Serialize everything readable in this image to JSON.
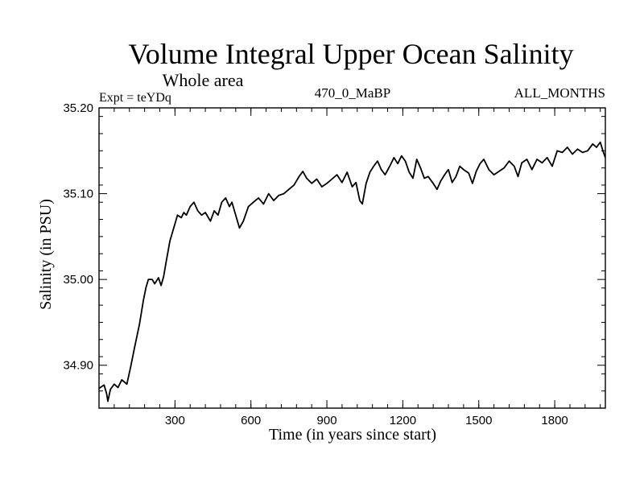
{
  "chart_data": {
    "type": "line",
    "title": "Volume Integral Upper Ocean Salinity",
    "subtitle": "Whole area",
    "left_label": "Expt = teYDq",
    "center_label": "470_0_MaBP",
    "right_label": "ALL_MONTHS",
    "xlabel": "Time (in years since start)",
    "ylabel": "Salinity (in PSU)",
    "xlim": [
      0,
      2000
    ],
    "ylim": [
      34.85,
      35.2
    ],
    "x_ticks": [
      300,
      600,
      900,
      1200,
      1500,
      1800
    ],
    "x_tick_labels": [
      "300",
      "600",
      "900",
      "1200",
      "1500",
      "1800"
    ],
    "y_ticks": [
      34.9,
      35.0,
      35.1,
      35.2
    ],
    "y_tick_labels": [
      "34.90",
      "35.00",
      "35.10",
      "35.20"
    ],
    "series": [
      {
        "name": "Salinity",
        "color": "#000000",
        "x": [
          0,
          20,
          30,
          35,
          45,
          60,
          75,
          90,
          110,
          125,
          140,
          160,
          175,
          185,
          195,
          210,
          220,
          235,
          245,
          255,
          265,
          280,
          295,
          310,
          325,
          335,
          345,
          360,
          375,
          390,
          405,
          420,
          440,
          455,
          470,
          485,
          500,
          515,
          525,
          540,
          555,
          570,
          590,
          610,
          630,
          650,
          670,
          690,
          710,
          730,
          750,
          770,
          790,
          805,
          820,
          840,
          860,
          880,
          900,
          920,
          940,
          960,
          980,
          1000,
          1015,
          1030,
          1040,
          1055,
          1070,
          1085,
          1100,
          1115,
          1130,
          1150,
          1165,
          1180,
          1195,
          1210,
          1225,
          1240,
          1255,
          1270,
          1285,
          1300,
          1320,
          1335,
          1350,
          1365,
          1380,
          1395,
          1410,
          1425,
          1440,
          1460,
          1475,
          1490,
          1505,
          1520,
          1540,
          1560,
          1580,
          1600,
          1620,
          1640,
          1655,
          1670,
          1690,
          1710,
          1730,
          1750,
          1770,
          1790,
          1810,
          1830,
          1850,
          1870,
          1890,
          1910,
          1930,
          1950,
          1965,
          1980,
          1990,
          2000
        ],
        "values": [
          34.873,
          34.877,
          34.867,
          34.858,
          34.872,
          34.878,
          34.874,
          34.883,
          34.878,
          34.898,
          34.92,
          34.948,
          34.975,
          34.99,
          35.0,
          35.0,
          34.995,
          35.002,
          34.993,
          35.003,
          35.02,
          35.045,
          35.06,
          35.075,
          35.072,
          35.078,
          35.075,
          35.085,
          35.09,
          35.08,
          35.075,
          35.078,
          35.068,
          35.08,
          35.075,
          35.09,
          35.095,
          35.085,
          35.09,
          35.075,
          35.06,
          35.068,
          35.085,
          35.09,
          35.095,
          35.088,
          35.1,
          35.092,
          35.098,
          35.1,
          35.105,
          35.11,
          35.12,
          35.126,
          35.118,
          35.112,
          35.117,
          35.108,
          35.112,
          35.117,
          35.122,
          35.113,
          35.125,
          35.108,
          35.113,
          35.092,
          35.088,
          35.112,
          35.125,
          35.132,
          35.138,
          35.128,
          35.122,
          35.133,
          35.142,
          35.135,
          35.144,
          35.138,
          35.125,
          35.118,
          35.14,
          35.13,
          35.118,
          35.12,
          35.112,
          35.105,
          35.115,
          35.122,
          35.128,
          35.113,
          35.12,
          35.132,
          35.128,
          35.124,
          35.112,
          35.126,
          35.135,
          35.14,
          35.128,
          35.122,
          35.126,
          35.13,
          35.138,
          35.132,
          35.12,
          35.136,
          35.14,
          35.128,
          35.14,
          35.136,
          35.142,
          35.132,
          35.15,
          35.148,
          35.154,
          35.146,
          35.152,
          35.148,
          35.15,
          35.158,
          35.154,
          35.16,
          35.15,
          35.142
        ]
      }
    ]
  }
}
